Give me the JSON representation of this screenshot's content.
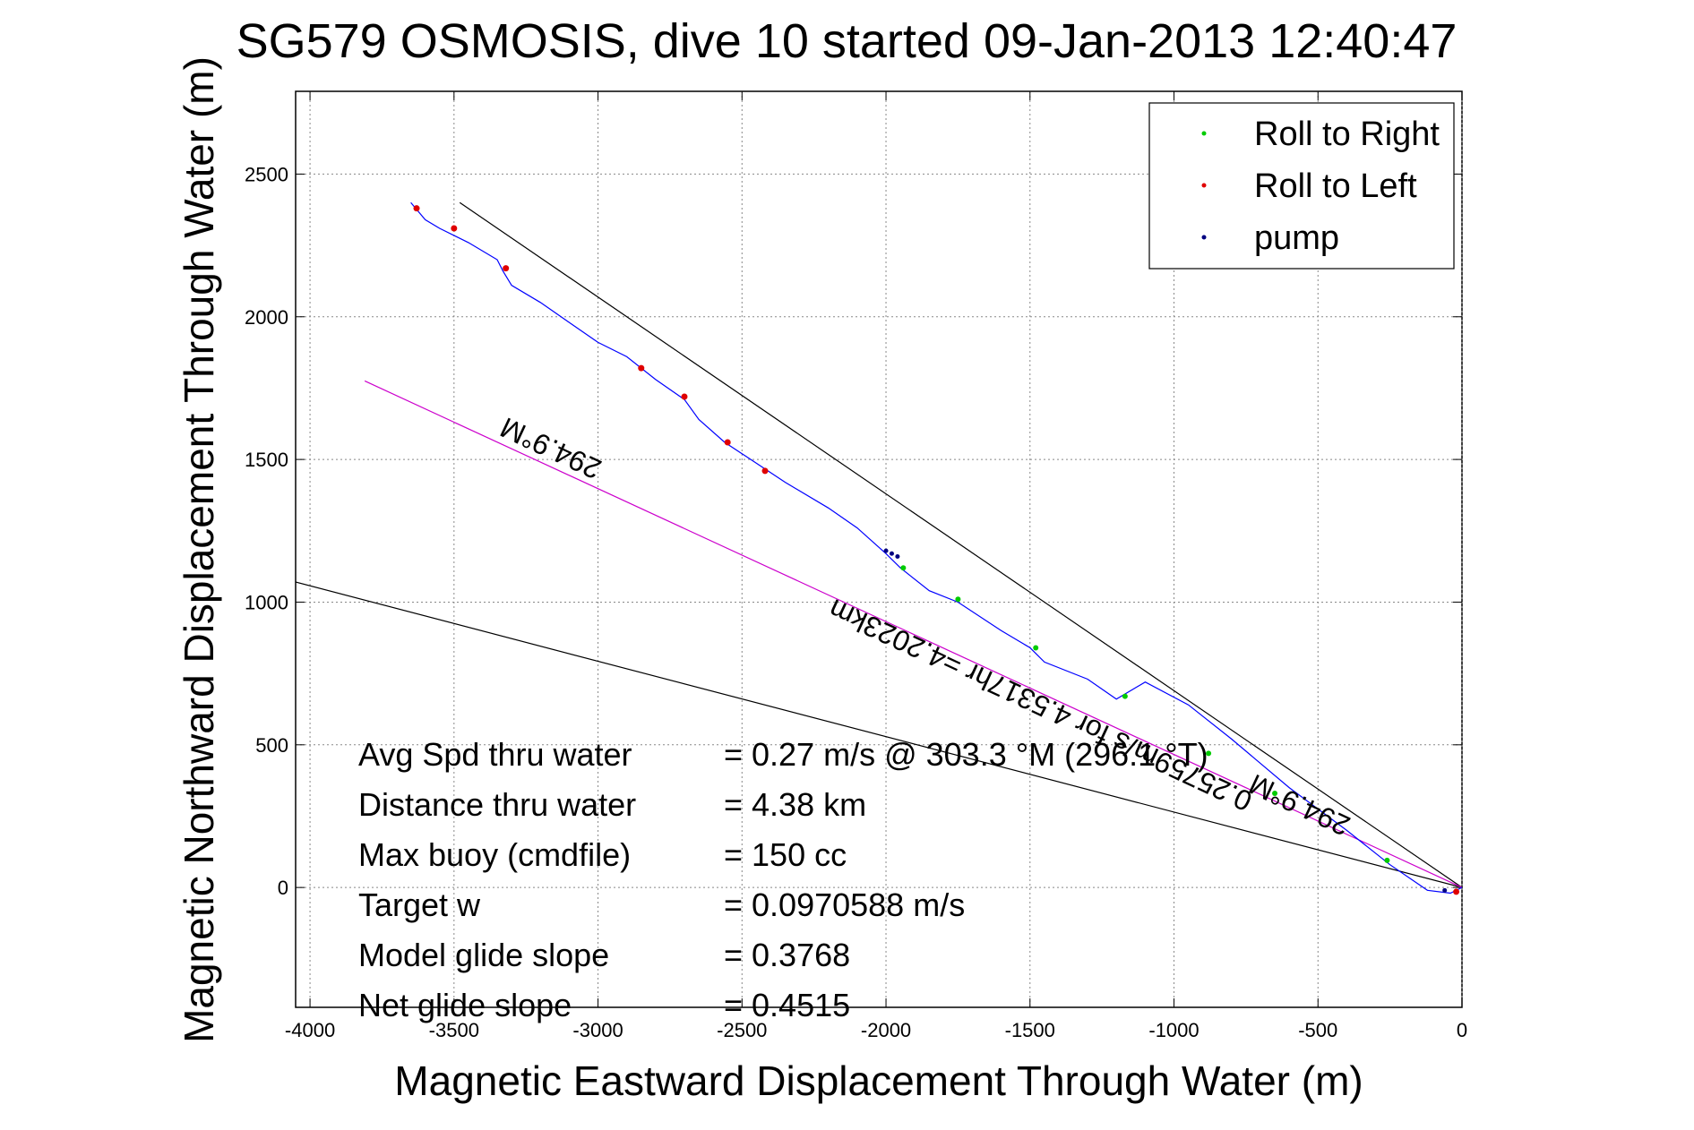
{
  "chart_data": {
    "type": "line",
    "title": "SG579 OSMOSIS, dive 10 started 09-Jan-2013 12:40:47",
    "xlabel": "Magnetic Eastward Displacement Through Water (m)",
    "ylabel": "Magnetic Northward Displacement Through Water (m)",
    "xlim": [
      -4050,
      0
    ],
    "ylim": [
      -420,
      2790
    ],
    "xticks": [
      -4000,
      -3500,
      -3000,
      -2500,
      -2000,
      -1500,
      -1000,
      -500,
      0
    ],
    "yticks": [
      0,
      500,
      1000,
      1500,
      2000,
      2500
    ],
    "grid": true,
    "legend": {
      "placement": "top-right",
      "entries": [
        {
          "label": "Roll to Right",
          "color": "#00cc00"
        },
        {
          "label": "Roll to Left",
          "color": "#e00000"
        },
        {
          "label": "pump",
          "color": "#000080"
        }
      ]
    },
    "track": {
      "color": "#0000ff",
      "x": [
        0,
        -40,
        -120,
        -250,
        -400,
        -600,
        -800,
        -950,
        -1100,
        -1200,
        -1300,
        -1450,
        -1500,
        -1600,
        -1750,
        -1850,
        -1950,
        -2000,
        -2100,
        -2200,
        -2350,
        -2500,
        -2560,
        -2650,
        -2700,
        -2800,
        -2900,
        -3000,
        -3100,
        -3200,
        -3300,
        -3330,
        -3350,
        -3450,
        -3550,
        -3600,
        -3650
      ],
      "y": [
        0,
        -20,
        -10,
        80,
        200,
        350,
        520,
        640,
        720,
        660,
        730,
        790,
        840,
        900,
        1000,
        1040,
        1120,
        1170,
        1260,
        1330,
        1420,
        1520,
        1560,
        1640,
        1710,
        1780,
        1860,
        1910,
        1980,
        2050,
        2110,
        2160,
        2200,
        2260,
        2310,
        2340,
        2400
      ]
    },
    "roll_right": [
      {
        "x": -260,
        "y": 95
      },
      {
        "x": -650,
        "y": 330
      },
      {
        "x": -880,
        "y": 470
      },
      {
        "x": -1170,
        "y": 670
      },
      {
        "x": -1480,
        "y": 840
      },
      {
        "x": -1750,
        "y": 1010
      },
      {
        "x": -1940,
        "y": 1120
      }
    ],
    "roll_left": [
      {
        "x": -20,
        "y": -15
      },
      {
        "x": -3320,
        "y": 2170
      },
      {
        "x": -3500,
        "y": 2310
      },
      {
        "x": -3630,
        "y": 2380
      },
      {
        "x": -2550,
        "y": 1560
      },
      {
        "x": -2700,
        "y": 1720
      },
      {
        "x": -2420,
        "y": 1460
      },
      {
        "x": -2850,
        "y": 1820
      }
    ],
    "pump": [
      {
        "x": -2000,
        "y": 1180
      },
      {
        "x": -1980,
        "y": 1170
      },
      {
        "x": -1960,
        "y": 1160
      },
      {
        "x": -60,
        "y": -10
      }
    ],
    "reference_lines": [
      {
        "name": "upper-bound",
        "color": "#000000",
        "x": [
          0,
          -3480
        ],
        "y": [
          0,
          2400
        ]
      },
      {
        "name": "lower-bound",
        "color": "#000000",
        "x": [
          0,
          -4200
        ],
        "y": [
          0,
          1110
        ]
      },
      {
        "name": "net-track",
        "color": "#cc00cc",
        "x": [
          0,
          -3810
        ],
        "y": [
          0,
          1775
        ]
      }
    ],
    "annotations": [
      {
        "text": "294.9°M",
        "x": -3150,
        "y": 1570,
        "angle": 205
      },
      {
        "text": "0.25759m/s for 4.5317hr =4.2023km",
        "x": -1450,
        "y": 670,
        "angle": 205
      },
      {
        "text": "294.9°M",
        "x": -550,
        "y": 320,
        "angle": 205
      }
    ]
  },
  "stats": [
    {
      "label": "Avg Spd thru water",
      "value": "=  0.27 m/s @ 303.3  °M (296.1 °T)"
    },
    {
      "label": "Distance thru water",
      "value": "=  4.38 km"
    },
    {
      "label": "Max buoy (cmdfile)",
      "value": "= 150 cc"
    },
    {
      "label": "Target w",
      "value": "= 0.0970588 m/s"
    },
    {
      "label": "Model glide slope",
      "value": "= 0.3768"
    },
    {
      "label": "Net glide slope",
      "value": "= 0.4515"
    }
  ]
}
